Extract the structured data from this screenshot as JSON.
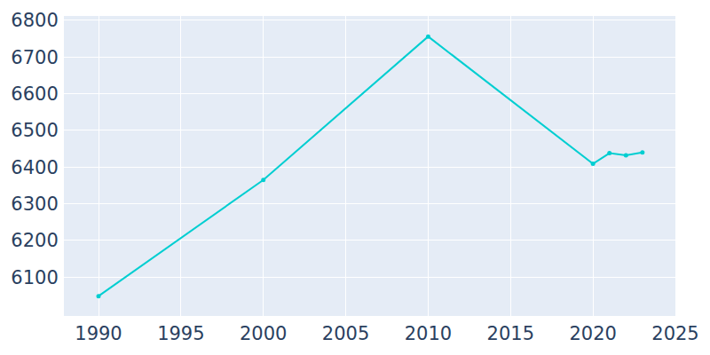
{
  "chart_data": {
    "type": "line",
    "x": [
      1990,
      2000,
      2010,
      2020,
      2021,
      2022,
      2023
    ],
    "values": [
      6048,
      6365,
      6756,
      6409,
      6438,
      6432,
      6440
    ],
    "color": "#00ced1",
    "marker": "circle",
    "xlim": [
      1987.9,
      2025
    ],
    "xticks": [
      1990,
      1995,
      2000,
      2005,
      2010,
      2015,
      2020,
      2025
    ],
    "ylim": [
      5994,
      6812
    ],
    "yticks": [
      6100,
      6200,
      6300,
      6400,
      6500,
      6600,
      6700,
      6800
    ],
    "grid": true
  }
}
